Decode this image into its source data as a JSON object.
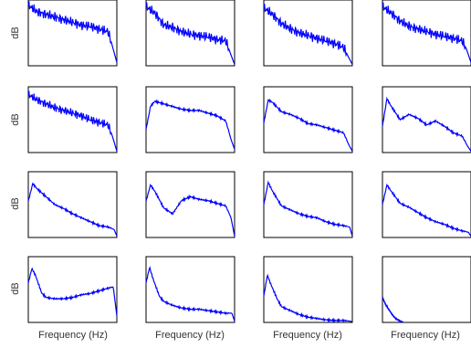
{
  "figure": {
    "ylabel": "dB",
    "xlabel": "Frequency (Hz)"
  },
  "chart_data": [
    {
      "type": "line",
      "panel": "row1-col1",
      "xlabel": "",
      "ylabel": "dB",
      "grid": false,
      "series": [
        {
          "color": "#0000ff",
          "x": [
            0,
            0.1,
            0.2,
            0.3,
            0.4,
            0.5,
            0.6,
            0.7,
            0.8,
            0.9,
            0.95,
            1.0
          ],
          "y": [
            0.92,
            0.82,
            0.78,
            0.74,
            0.7,
            0.66,
            0.62,
            0.6,
            0.56,
            0.52,
            0.3,
            0.05
          ]
        }
      ]
    },
    {
      "type": "line",
      "panel": "row1-col2",
      "xlabel": "",
      "ylabel": "",
      "grid": false,
      "series": [
        {
          "color": "#0000ff",
          "x": [
            0,
            0.1,
            0.2,
            0.3,
            0.4,
            0.5,
            0.6,
            0.7,
            0.8,
            0.9,
            0.95,
            1.0
          ],
          "y": [
            0.9,
            0.8,
            0.62,
            0.58,
            0.52,
            0.48,
            0.46,
            0.44,
            0.4,
            0.38,
            0.2,
            0.02
          ]
        }
      ]
    },
    {
      "type": "line",
      "panel": "row1-col3",
      "xlabel": "",
      "ylabel": "",
      "grid": false,
      "series": [
        {
          "color": "#0000ff",
          "x": [
            0,
            0.1,
            0.2,
            0.3,
            0.4,
            0.5,
            0.6,
            0.7,
            0.8,
            0.9,
            0.95,
            1.0
          ],
          "y": [
            0.88,
            0.78,
            0.64,
            0.56,
            0.5,
            0.46,
            0.42,
            0.38,
            0.34,
            0.28,
            0.15,
            0.02
          ]
        }
      ]
    },
    {
      "type": "line",
      "panel": "row1-col4",
      "xlabel": "",
      "ylabel": "",
      "grid": false,
      "series": [
        {
          "color": "#0000ff",
          "x": [
            0,
            0.1,
            0.2,
            0.3,
            0.4,
            0.5,
            0.6,
            0.7,
            0.8,
            0.9,
            0.95,
            1.0
          ],
          "y": [
            0.9,
            0.8,
            0.68,
            0.6,
            0.56,
            0.52,
            0.48,
            0.45,
            0.42,
            0.38,
            0.25,
            0.05
          ]
        }
      ]
    },
    {
      "type": "line",
      "panel": "row2-col1",
      "xlabel": "",
      "ylabel": "dB",
      "grid": false,
      "series": [
        {
          "color": "#0000ff",
          "x": [
            0,
            0.1,
            0.2,
            0.3,
            0.4,
            0.5,
            0.6,
            0.7,
            0.8,
            0.9,
            0.95,
            1.0
          ],
          "y": [
            0.88,
            0.8,
            0.74,
            0.68,
            0.64,
            0.6,
            0.56,
            0.5,
            0.46,
            0.42,
            0.25,
            0.02
          ]
        }
      ]
    },
    {
      "type": "line",
      "panel": "row2-col2",
      "xlabel": "",
      "ylabel": "",
      "grid": false,
      "series": [
        {
          "color": "#0000ff",
          "x": [
            0,
            0.05,
            0.1,
            0.2,
            0.3,
            0.4,
            0.5,
            0.6,
            0.7,
            0.8,
            0.9,
            0.96,
            1.0
          ],
          "y": [
            0.35,
            0.7,
            0.78,
            0.74,
            0.7,
            0.66,
            0.64,
            0.64,
            0.6,
            0.56,
            0.48,
            0.2,
            0.05
          ]
        }
      ]
    },
    {
      "type": "line",
      "panel": "row2-col3",
      "xlabel": "",
      "ylabel": "",
      "grid": false,
      "series": [
        {
          "color": "#0000ff",
          "x": [
            0,
            0.05,
            0.1,
            0.2,
            0.3,
            0.4,
            0.5,
            0.6,
            0.7,
            0.8,
            0.9,
            0.96,
            1.0
          ],
          "y": [
            0.45,
            0.8,
            0.76,
            0.62,
            0.58,
            0.52,
            0.44,
            0.42,
            0.38,
            0.34,
            0.3,
            0.12,
            0.02
          ]
        }
      ]
    },
    {
      "type": "line",
      "panel": "row2-col4",
      "xlabel": "",
      "ylabel": "",
      "grid": false,
      "series": [
        {
          "color": "#0000ff",
          "x": [
            0,
            0.05,
            0.1,
            0.2,
            0.3,
            0.4,
            0.5,
            0.6,
            0.7,
            0.8,
            0.9,
            0.96,
            1.0
          ],
          "y": [
            0.4,
            0.82,
            0.7,
            0.5,
            0.58,
            0.52,
            0.42,
            0.48,
            0.4,
            0.3,
            0.25,
            0.1,
            0.02
          ]
        }
      ]
    },
    {
      "type": "line",
      "panel": "row3-col1",
      "xlabel": "",
      "ylabel": "dB",
      "grid": false,
      "series": [
        {
          "color": "#0000ff",
          "x": [
            0,
            0.05,
            0.1,
            0.2,
            0.3,
            0.4,
            0.5,
            0.6,
            0.7,
            0.8,
            0.9,
            0.97,
            1.0
          ],
          "y": [
            0.55,
            0.82,
            0.74,
            0.62,
            0.5,
            0.44,
            0.36,
            0.3,
            0.24,
            0.18,
            0.16,
            0.12,
            0.02
          ]
        }
      ]
    },
    {
      "type": "line",
      "panel": "row3-col2",
      "xlabel": "",
      "ylabel": "",
      "grid": false,
      "series": [
        {
          "color": "#0000ff",
          "x": [
            0,
            0.05,
            0.1,
            0.2,
            0.3,
            0.4,
            0.5,
            0.6,
            0.7,
            0.8,
            0.9,
            0.96,
            1.0
          ],
          "y": [
            0.55,
            0.8,
            0.7,
            0.45,
            0.36,
            0.56,
            0.62,
            0.58,
            0.56,
            0.52,
            0.48,
            0.3,
            0.02
          ]
        }
      ]
    },
    {
      "type": "line",
      "panel": "row3-col3",
      "xlabel": "",
      "ylabel": "",
      "grid": false,
      "series": [
        {
          "color": "#0000ff",
          "x": [
            0,
            0.05,
            0.1,
            0.2,
            0.3,
            0.4,
            0.5,
            0.6,
            0.7,
            0.8,
            0.9,
            0.97,
            1.0
          ],
          "y": [
            0.5,
            0.84,
            0.7,
            0.48,
            0.42,
            0.36,
            0.32,
            0.3,
            0.24,
            0.2,
            0.18,
            0.16,
            0.02
          ]
        }
      ]
    },
    {
      "type": "line",
      "panel": "row3-col4",
      "xlabel": "",
      "ylabel": "",
      "grid": false,
      "series": [
        {
          "color": "#0000ff",
          "x": [
            0,
            0.05,
            0.1,
            0.2,
            0.3,
            0.4,
            0.5,
            0.6,
            0.7,
            0.8,
            0.9,
            0.97,
            1.0
          ],
          "y": [
            0.5,
            0.8,
            0.7,
            0.52,
            0.46,
            0.38,
            0.3,
            0.24,
            0.2,
            0.14,
            0.1,
            0.08,
            0.02
          ]
        }
      ]
    },
    {
      "type": "line",
      "panel": "row4-col1",
      "xlabel": "Frequency (Hz)",
      "ylabel": "dB",
      "grid": false,
      "series": [
        {
          "color": "#0000ff",
          "x": [
            0,
            0.04,
            0.08,
            0.15,
            0.2,
            0.3,
            0.4,
            0.5,
            0.6,
            0.7,
            0.8,
            0.9,
            0.96,
            1.0
          ],
          "y": [
            0.6,
            0.82,
            0.72,
            0.45,
            0.38,
            0.36,
            0.36,
            0.38,
            0.42,
            0.44,
            0.48,
            0.52,
            0.54,
            0.1
          ]
        }
      ]
    },
    {
      "type": "line",
      "panel": "row4-col2",
      "xlabel": "Frequency (Hz)",
      "ylabel": "",
      "grid": false,
      "series": [
        {
          "color": "#0000ff",
          "x": [
            0,
            0.04,
            0.08,
            0.15,
            0.2,
            0.3,
            0.4,
            0.5,
            0.6,
            0.7,
            0.8,
            0.9,
            0.97,
            1.0
          ],
          "y": [
            0.6,
            0.84,
            0.66,
            0.4,
            0.32,
            0.26,
            0.22,
            0.2,
            0.2,
            0.18,
            0.16,
            0.14,
            0.14,
            0.02
          ]
        }
      ]
    },
    {
      "type": "line",
      "panel": "row4-col3",
      "xlabel": "Frequency (Hz)",
      "ylabel": "",
      "grid": false,
      "series": [
        {
          "color": "#0000ff",
          "x": [
            0,
            0.04,
            0.08,
            0.15,
            0.2,
            0.3,
            0.4,
            0.5,
            0.6,
            0.7,
            0.8,
            0.9,
            0.97,
            1.0
          ],
          "y": [
            0.4,
            0.72,
            0.58,
            0.36,
            0.24,
            0.18,
            0.12,
            0.08,
            0.06,
            0.04,
            0.03,
            0.03,
            0.02,
            0.01
          ]
        }
      ]
    },
    {
      "type": "line",
      "panel": "row4-col4",
      "xlabel": "Frequency (Hz)",
      "ylabel": "",
      "grid": false,
      "series": [
        {
          "color": "#0000ff",
          "x": [
            0,
            0.04,
            0.08,
            0.12,
            0.16,
            0.2,
            0.24
          ],
          "y": [
            0.38,
            0.26,
            0.18,
            0.1,
            0.05,
            0.02,
            0.0
          ]
        }
      ]
    }
  ]
}
